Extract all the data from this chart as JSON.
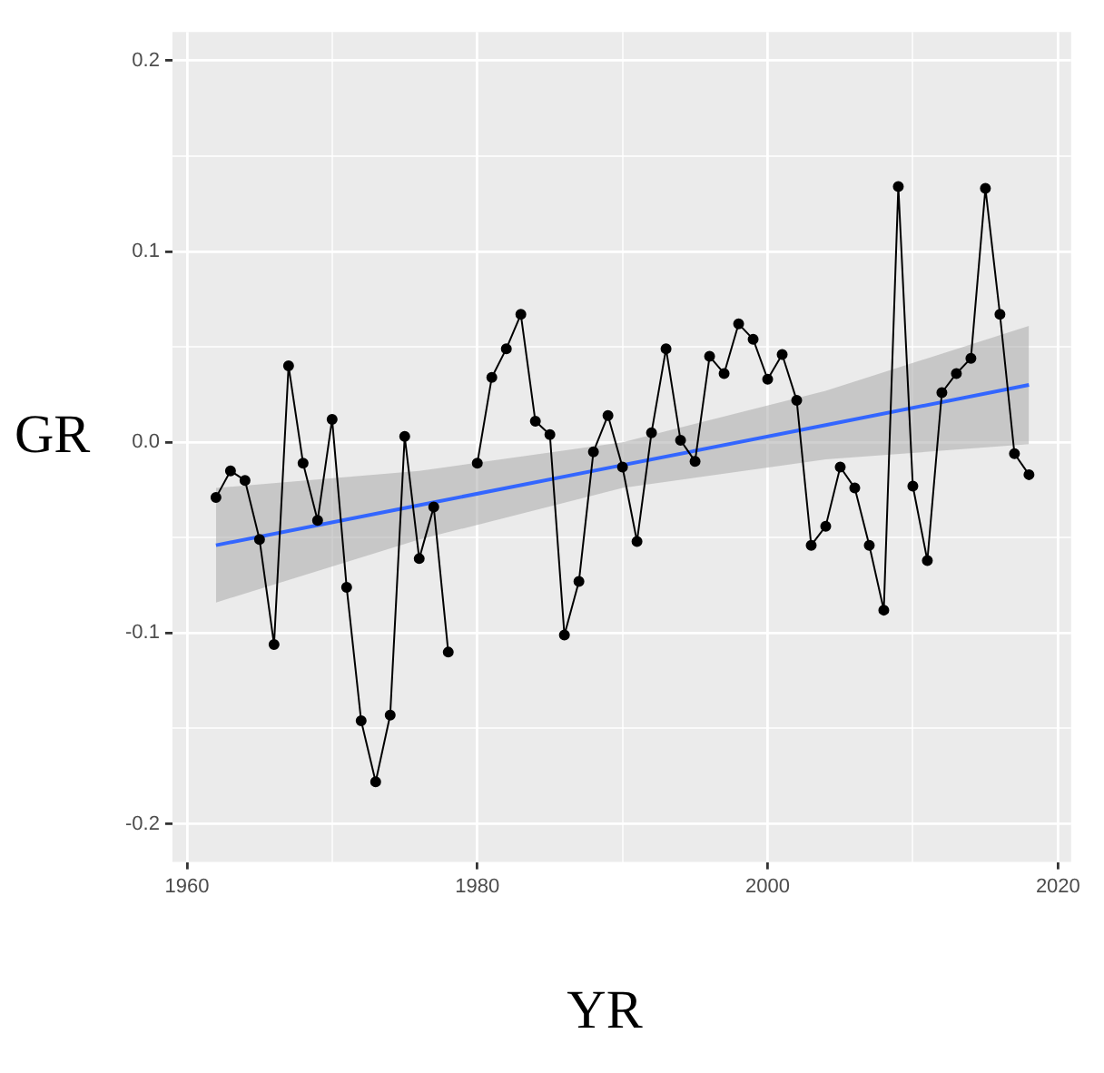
{
  "chart_data": {
    "type": "line",
    "xlabel": "YR",
    "ylabel": "GR",
    "x": [
      1962,
      1963,
      1964,
      1965,
      1966,
      1967,
      1968,
      1969,
      1970,
      1971,
      1972,
      1973,
      1974,
      1975,
      1976,
      1977,
      1978,
      1979,
      1980,
      1981,
      1982,
      1983,
      1984,
      1985,
      1986,
      1987,
      1988,
      1989,
      1990,
      1991,
      1992,
      1993,
      1994,
      1995,
      1996,
      1997,
      1998,
      1999,
      2000,
      2001,
      2002,
      2003,
      2004,
      2005,
      2006,
      2007,
      2008,
      2009,
      2010,
      2011,
      2012,
      2013,
      2014,
      2015,
      2016,
      2017,
      2018
    ],
    "series": [
      {
        "color": "#000000",
        "marker": "circle",
        "values": [
          -0.029,
          -0.015,
          -0.02,
          -0.051,
          -0.106,
          0.04,
          -0.011,
          -0.041,
          0.012,
          -0.076,
          -0.146,
          -0.178,
          -0.143,
          0.003,
          -0.061,
          -0.034,
          -0.11,
          null,
          -0.011,
          0.034,
          0.049,
          0.067,
          0.011,
          0.004,
          -0.101,
          -0.073,
          -0.005,
          0.014,
          -0.013,
          -0.052,
          0.005,
          0.049,
          0.001,
          -0.01,
          0.045,
          0.036,
          0.062,
          0.054,
          0.033,
          0.046,
          0.022,
          -0.054,
          -0.044,
          -0.013,
          -0.024,
          -0.054,
          -0.088,
          0.134,
          -0.023,
          -0.062,
          0.026,
          0.036,
          0.044,
          0.133,
          0.067,
          -0.006,
          -0.017
        ]
      },
      {
        "type": "line",
        "color": "#3366ff",
        "marker": "none",
        "x": [
          1962,
          1976,
          1990,
          2004,
          2018
        ],
        "values": [
          -0.054,
          -0.033,
          -0.012,
          0.009,
          0.03
        ],
        "lower": [
          -0.084,
          -0.051,
          -0.024,
          -0.009,
          -0.001
        ],
        "upper": [
          -0.024,
          -0.015,
          0.0,
          0.027,
          0.061
        ]
      }
    ],
    "xlim": [
      1959,
      2020.9
    ],
    "xticks": [
      1960,
      {
        "value": 1970,
        "label": null
      },
      1980,
      {
        "value": 1990,
        "label": null
      },
      2000,
      {
        "value": 2010,
        "label": null
      },
      2020
    ],
    "ylim": [
      -0.22,
      0.215
    ],
    "yticks": [
      {
        "value": -0.2,
        "label": "-0.2"
      },
      {
        "value": -0.15,
        "label": null
      },
      {
        "value": -0.1,
        "label": "-0.1"
      },
      {
        "value": -0.05,
        "label": null
      },
      {
        "value": 0,
        "label": "0.0"
      },
      {
        "value": 0.05,
        "label": null
      },
      {
        "value": 0.1,
        "label": "0.1"
      },
      {
        "value": 0.15,
        "label": null
      },
      {
        "value": 0.2,
        "label": "0.2"
      }
    ],
    "grid": true,
    "legend": false
  }
}
